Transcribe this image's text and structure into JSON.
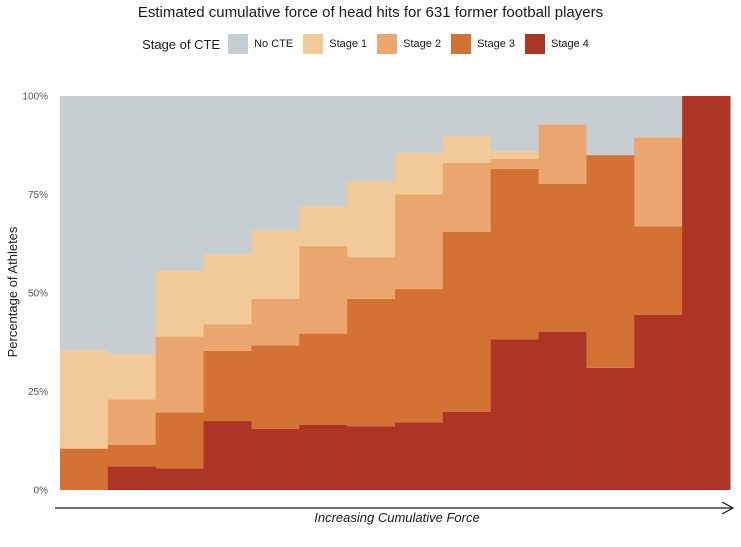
{
  "chart_data": {
    "type": "area",
    "title": "Estimated cumulative force of head hits for 631 former football players",
    "legend": {
      "title": "Stage of CTE",
      "position": "top",
      "entries": [
        {
          "name": "No CTE",
          "color": "#c6ced2"
        },
        {
          "name": "Stage 1",
          "color": "#f2c998"
        },
        {
          "name": "Stage 2",
          "color": "#eaa66c"
        },
        {
          "name": "Stage 3",
          "color": "#d47234"
        },
        {
          "name": "Stage 4",
          "color": "#ad3526"
        }
      ]
    },
    "xlabel": "Increasing Cumulative Force",
    "ylabel": "Percentage of Athletes",
    "y_ticks": [
      "0%",
      "25%",
      "50%",
      "75%",
      "100%"
    ],
    "ylim": [
      0,
      100
    ],
    "bins": 14,
    "series": [
      {
        "name": "Stage 4",
        "values": [
          0,
          6,
          5.5,
          17.5,
          15.5,
          16.5,
          16.2,
          17.2,
          19.8,
          38.2,
          40.2,
          31,
          44.5,
          100
        ]
      },
      {
        "name": "Stage 3",
        "values": [
          10.5,
          5.5,
          14.2,
          17.8,
          21.2,
          23.2,
          32.3,
          33.8,
          45.7,
          43.3,
          37.5,
          54,
          22.4,
          0
        ]
      },
      {
        "name": "Stage 2",
        "values": [
          0,
          11.5,
          19.3,
          6.7,
          11.8,
          22.2,
          10.6,
          24,
          17.5,
          2.5,
          15.1,
          0,
          22.6,
          0
        ]
      },
      {
        "name": "Stage 1",
        "values": [
          25,
          11.5,
          16.5,
          17.8,
          17.5,
          10,
          19.2,
          10.5,
          6.8,
          2,
          0,
          0,
          0,
          0
        ]
      },
      {
        "name": "No CTE",
        "values": [
          64.5,
          65.5,
          44.5,
          40.2,
          34,
          28.1,
          21.7,
          14.5,
          10.2,
          14,
          7.2,
          15,
          10.5,
          0
        ]
      }
    ]
  }
}
